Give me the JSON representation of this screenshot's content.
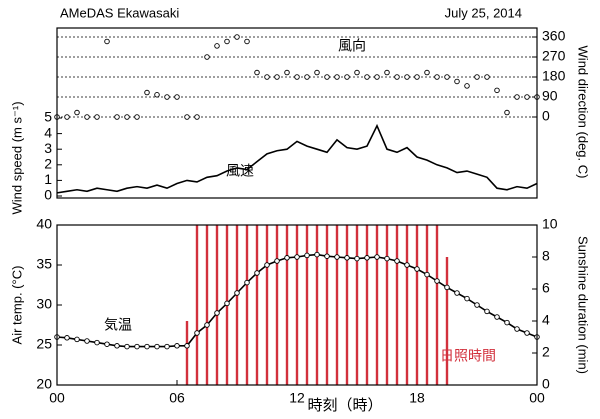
{
  "chart_data": [
    {
      "type": "combo",
      "title": "AMeDAS Ekawasaki",
      "subtitle": "July 25, 2014",
      "ylabel": "Wind speed (m s⁻¹)",
      "y2label": "Wind direction (deg. C)",
      "xlim": [
        0,
        24
      ],
      "ylim": [
        0,
        5
      ],
      "yticks": [
        0,
        1,
        2,
        3,
        4,
        5
      ],
      "y2lim": [
        0,
        360
      ],
      "y2ticks": [
        0,
        90,
        180,
        270,
        360
      ],
      "grid": true,
      "x": [
        0,
        0.5,
        1,
        1.5,
        2,
        2.5,
        3,
        3.5,
        4,
        4.5,
        5,
        5.5,
        6,
        6.5,
        7,
        7.5,
        8,
        8.5,
        9,
        9.5,
        10,
        10.5,
        11,
        11.5,
        12,
        12.5,
        13,
        13.5,
        14,
        14.5,
        15,
        15.5,
        16,
        16.5,
        17,
        17.5,
        18,
        18.5,
        19,
        19.5,
        20,
        20.5,
        21,
        21.5,
        22,
        22.5,
        23,
        23.5,
        24
      ],
      "series": [
        {
          "name": "風向",
          "type": "scatter",
          "axis": "y2",
          "color": "#000000",
          "values": [
            0,
            0,
            20,
            0,
            0,
            340,
            0,
            0,
            0,
            110,
            100,
            90,
            90,
            0,
            0,
            270,
            320,
            340,
            360,
            340,
            200,
            180,
            180,
            200,
            180,
            180,
            200,
            180,
            180,
            180,
            200,
            180,
            180,
            200,
            180,
            180,
            180,
            200,
            180,
            180,
            160,
            140,
            180,
            180,
            120,
            20,
            90,
            90,
            90
          ]
        },
        {
          "name": "風速",
          "type": "line",
          "axis": "y",
          "color": "#000000",
          "values": [
            0.2,
            0.3,
            0.4,
            0.3,
            0.5,
            0.4,
            0.3,
            0.5,
            0.6,
            0.5,
            0.7,
            0.5,
            0.8,
            1.0,
            0.9,
            1.2,
            1.3,
            1.6,
            1.8,
            1.7,
            2.2,
            2.7,
            2.9,
            3.0,
            3.5,
            3.2,
            3.0,
            2.8,
            3.6,
            3.1,
            3.0,
            3.2,
            4.5,
            3.0,
            2.8,
            3.1,
            2.5,
            2.3,
            2.0,
            1.8,
            1.5,
            1.6,
            1.4,
            1.2,
            0.5,
            0.4,
            0.6,
            0.5,
            0.8
          ]
        }
      ]
    },
    {
      "type": "combo",
      "xlabel": "時刻（時）",
      "ylabel": "Air temp. (°C)",
      "y2label": "Sunshine duration (min)",
      "xlim": [
        0,
        24
      ],
      "xticks": [
        {
          "value": 0,
          "label": "00"
        },
        {
          "value": 6,
          "label": "06"
        },
        12,
        18,
        {
          "value": 24,
          "label": "00"
        }
      ],
      "ylim": [
        20,
        40
      ],
      "yticks": [
        20,
        25,
        30,
        35,
        40
      ],
      "y2lim": [
        0,
        10
      ],
      "y2ticks": [
        0,
        2,
        4,
        6,
        8,
        10
      ],
      "x": [
        0,
        0.5,
        1,
        1.5,
        2,
        2.5,
        3,
        3.5,
        4,
        4.5,
        5,
        5.5,
        6,
        6.5,
        7,
        7.5,
        8,
        8.5,
        9,
        9.5,
        10,
        10.5,
        11,
        11.5,
        12,
        12.5,
        13,
        13.5,
        14,
        14.5,
        15,
        15.5,
        16,
        16.5,
        17,
        17.5,
        18,
        18.5,
        19,
        19.5,
        20,
        20.5,
        21,
        21.5,
        22,
        22.5,
        23,
        23.5,
        24
      ],
      "series": [
        {
          "name": "日照時間",
          "type": "bar",
          "axis": "y2",
          "color": "#d2303c",
          "values": [
            0,
            0,
            0,
            0,
            0,
            0,
            0,
            0,
            0,
            0,
            0,
            0,
            0,
            4,
            10,
            10,
            10,
            10,
            10,
            10,
            10,
            10,
            10,
            10,
            10,
            10,
            10,
            10,
            10,
            10,
            10,
            10,
            10,
            10,
            10,
            10,
            10,
            10,
            10,
            8,
            0,
            0,
            0,
            0,
            0,
            0,
            0,
            0,
            0
          ]
        },
        {
          "name": "気温",
          "type": "scatterline",
          "axis": "y",
          "color": "#000000",
          "values": [
            26.0,
            25.9,
            25.7,
            25.5,
            25.3,
            25.1,
            24.9,
            24.8,
            24.8,
            24.8,
            24.8,
            24.8,
            24.9,
            24.9,
            26.5,
            27.5,
            29.0,
            30.2,
            31.5,
            32.8,
            34.0,
            35.0,
            35.5,
            35.9,
            36.0,
            36.2,
            36.3,
            36.1,
            36.0,
            35.9,
            35.8,
            35.9,
            36.0,
            35.8,
            35.5,
            35.0,
            34.5,
            33.8,
            33.0,
            32.2,
            31.5,
            30.8,
            30.0,
            29.2,
            28.5,
            27.8,
            27.0,
            26.5,
            26.0
          ]
        }
      ]
    }
  ]
}
